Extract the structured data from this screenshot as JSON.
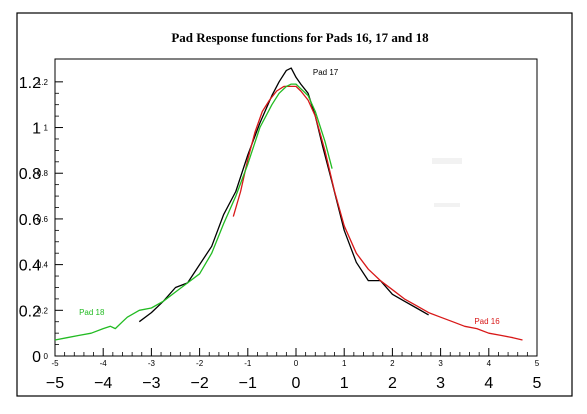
{
  "chart_data": {
    "type": "line",
    "title": "Pad Response functions for Pads 16, 17 and 18",
    "xlim": [
      -5,
      5
    ],
    "ylim": [
      0,
      1.3
    ],
    "x_ticks_big": [
      "−5",
      "−4",
      "−3",
      "−2",
      "−1",
      "0",
      "1",
      "2",
      "3",
      "4",
      "5"
    ],
    "x_ticks_small": [
      "-5",
      "-4",
      "-3",
      "-2",
      "-1",
      "0",
      "1",
      "2",
      "3",
      "4",
      "5"
    ],
    "y_ticks_big": [
      "0",
      "0.2",
      "0.4",
      "0.6",
      "0.8",
      "1",
      "1.2"
    ],
    "y_ticks_small": [
      "0",
      "0.2",
      "0.4",
      "0.6",
      "0.8",
      "1",
      "1.2"
    ],
    "grid": false,
    "series": [
      {
        "name": "Pad 17",
        "color": "#000000",
        "x": [
          -3.25,
          -3.0,
          -2.75,
          -2.5,
          -2.25,
          -2.0,
          -1.75,
          -1.5,
          -1.25,
          -1.0,
          -0.75,
          -0.5,
          -0.35,
          -0.2,
          -0.1,
          0.0,
          0.1,
          0.25,
          0.4,
          0.55,
          0.75,
          1.0,
          1.25,
          1.5,
          1.75,
          2.0,
          2.25,
          2.5,
          2.75
        ],
        "y": [
          0.15,
          0.19,
          0.24,
          0.3,
          0.32,
          0.4,
          0.48,
          0.62,
          0.72,
          0.88,
          1.02,
          1.14,
          1.2,
          1.25,
          1.26,
          1.22,
          1.19,
          1.15,
          1.05,
          0.92,
          0.76,
          0.55,
          0.41,
          0.33,
          0.33,
          0.27,
          0.24,
          0.21,
          0.18
        ]
      },
      {
        "name": "Pad 16",
        "color": "#d81818",
        "x": [
          -1.3,
          -1.15,
          -1.0,
          -0.85,
          -0.7,
          -0.55,
          -0.4,
          -0.25,
          -0.1,
          0.0,
          0.1,
          0.25,
          0.4,
          0.6,
          0.8,
          1.0,
          1.25,
          1.5,
          1.75,
          2.0,
          2.25,
          2.5,
          2.75,
          3.0,
          3.25,
          3.5,
          3.75,
          4.0,
          4.25,
          4.5,
          4.7
        ],
        "y": [
          0.61,
          0.72,
          0.86,
          0.98,
          1.07,
          1.12,
          1.16,
          1.18,
          1.18,
          1.18,
          1.16,
          1.12,
          1.05,
          0.9,
          0.72,
          0.57,
          0.45,
          0.38,
          0.33,
          0.29,
          0.25,
          0.22,
          0.19,
          0.17,
          0.15,
          0.13,
          0.12,
          0.1,
          0.09,
          0.08,
          0.07
        ]
      },
      {
        "name": "Pad 18",
        "color": "#22bb22",
        "x": [
          -5.0,
          -4.75,
          -4.5,
          -4.25,
          -4.0,
          -3.85,
          -3.75,
          -3.6,
          -3.5,
          -3.25,
          -3.0,
          -2.75,
          -2.5,
          -2.25,
          -2.0,
          -1.75,
          -1.5,
          -1.25,
          -1.0,
          -0.75,
          -0.5,
          -0.35,
          -0.2,
          -0.1,
          0.0,
          0.1,
          0.25,
          0.4,
          0.6,
          0.75
        ],
        "y": [
          0.07,
          0.08,
          0.09,
          0.1,
          0.12,
          0.13,
          0.12,
          0.15,
          0.17,
          0.2,
          0.21,
          0.24,
          0.28,
          0.32,
          0.36,
          0.45,
          0.58,
          0.7,
          0.84,
          1.0,
          1.1,
          1.15,
          1.18,
          1.19,
          1.19,
          1.17,
          1.14,
          1.07,
          0.94,
          0.82
        ]
      }
    ],
    "annotations": [
      {
        "text": "Pad 17",
        "x": 0.35,
        "y": 1.23,
        "color": "#000000"
      },
      {
        "text": "Pad 16",
        "x": 3.7,
        "y": 0.14,
        "color": "#d81818"
      },
      {
        "text": "Pad 18",
        "x": -4.5,
        "y": 0.18,
        "color": "#22bb22"
      }
    ]
  }
}
